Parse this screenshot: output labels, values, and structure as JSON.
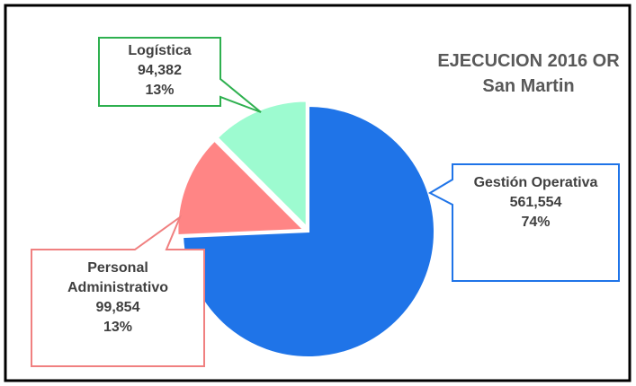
{
  "chart_data": {
    "type": "pie",
    "title": "EJECUCION 2016 OR San Martin",
    "categories": [
      "Gestión Operativa",
      "Personal Administrativo",
      "Logística"
    ],
    "values": [
      561554,
      99854,
      94382
    ],
    "value_labels": [
      "561,554",
      "99,854",
      "94,382"
    ],
    "percent_labels": [
      "74%",
      "13%",
      "13%"
    ],
    "colors": [
      "#1f74e8",
      "#ff8585",
      "#9dfbd0"
    ],
    "border_colors": [
      "#1f74e8",
      "#f08080",
      "#2eb04f"
    ]
  }
}
